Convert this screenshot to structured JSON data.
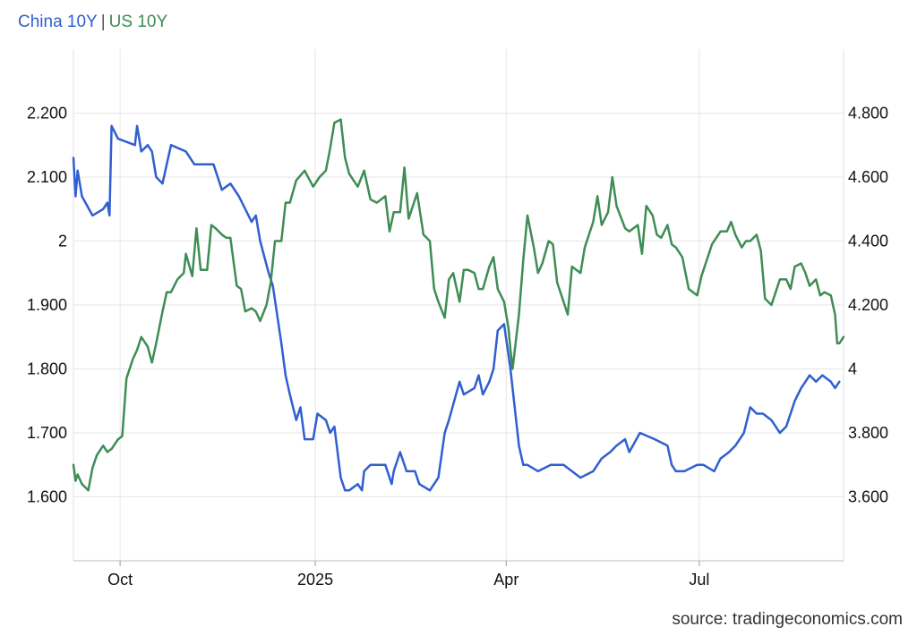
{
  "chart_data": {
    "type": "line",
    "source": "source: tradingeconomics.com",
    "legend": {
      "position": "top-left",
      "separator": "|"
    },
    "colors": {
      "China 10Y": "#2f5fd0",
      "US 10Y": "#3e8d55",
      "grid": "#e6e6e6"
    },
    "grid": true,
    "x_ticks": [
      {
        "date": "2024-10-01",
        "label": "Oct"
      },
      {
        "date": "2025-01-01",
        "label": "2025"
      },
      {
        "date": "2025-04-01",
        "label": "Apr"
      },
      {
        "date": "2025-07-01",
        "label": "Jul"
      }
    ],
    "x_range": [
      "2024-09-09",
      "2025-09-07"
    ],
    "y_left": {
      "series": "China 10Y",
      "range": [
        1.5,
        2.3
      ],
      "ticks": [
        1.6,
        1.7,
        1.8,
        1.9,
        2.0,
        2.1,
        2.2
      ],
      "tick_labels": [
        "1.600",
        "1.700",
        "1.800",
        "1.900",
        "2",
        "2.100",
        "2.200"
      ]
    },
    "y_right": {
      "series": "US 10Y",
      "range": [
        3.4,
        5.0
      ],
      "ticks": [
        3.6,
        3.8,
        4.0,
        4.2,
        4.4,
        4.6,
        4.8
      ],
      "tick_labels": [
        "3.600",
        "3.800",
        "4",
        "4.200",
        "4.400",
        "4.600",
        "4.800"
      ]
    },
    "series": [
      {
        "name": "China 10Y",
        "axis": "left",
        "points": [
          [
            "2024-09-09",
            2.13
          ],
          [
            "2024-09-10",
            2.07
          ],
          [
            "2024-09-11",
            2.11
          ],
          [
            "2024-09-13",
            2.07
          ],
          [
            "2024-09-18",
            2.04
          ],
          [
            "2024-09-23",
            2.05
          ],
          [
            "2024-09-25",
            2.06
          ],
          [
            "2024-09-26",
            2.04
          ],
          [
            "2024-09-27",
            2.18
          ],
          [
            "2024-09-30",
            2.16
          ],
          [
            "2024-10-08",
            2.15
          ],
          [
            "2024-10-09",
            2.18
          ],
          [
            "2024-10-11",
            2.14
          ],
          [
            "2024-10-14",
            2.15
          ],
          [
            "2024-10-16",
            2.14
          ],
          [
            "2024-10-18",
            2.1
          ],
          [
            "2024-10-21",
            2.09
          ],
          [
            "2024-10-23",
            2.12
          ],
          [
            "2024-10-25",
            2.15
          ],
          [
            "2024-11-01",
            2.14
          ],
          [
            "2024-11-05",
            2.12
          ],
          [
            "2024-11-14",
            2.12
          ],
          [
            "2024-11-18",
            2.08
          ],
          [
            "2024-11-22",
            2.09
          ],
          [
            "2024-11-26",
            2.07
          ],
          [
            "2024-12-02",
            2.03
          ],
          [
            "2024-12-04",
            2.04
          ],
          [
            "2024-12-06",
            2.0
          ],
          [
            "2024-12-10",
            1.95
          ],
          [
            "2024-12-12",
            1.93
          ],
          [
            "2024-12-16",
            1.84
          ],
          [
            "2024-12-18",
            1.79
          ],
          [
            "2024-12-20",
            1.76
          ],
          [
            "2024-12-23",
            1.72
          ],
          [
            "2024-12-25",
            1.74
          ],
          [
            "2024-12-27",
            1.69
          ],
          [
            "2024-12-31",
            1.69
          ],
          [
            "2025-01-02",
            1.73
          ],
          [
            "2025-01-06",
            1.72
          ],
          [
            "2025-01-08",
            1.7
          ],
          [
            "2025-01-10",
            1.71
          ],
          [
            "2025-01-13",
            1.63
          ],
          [
            "2025-01-15",
            1.61
          ],
          [
            "2025-01-17",
            1.61
          ],
          [
            "2025-01-21",
            1.62
          ],
          [
            "2025-01-23",
            1.61
          ],
          [
            "2025-01-24",
            1.64
          ],
          [
            "2025-01-27",
            1.65
          ],
          [
            "2025-02-03",
            1.65
          ],
          [
            "2025-02-06",
            1.62
          ],
          [
            "2025-02-07",
            1.64
          ],
          [
            "2025-02-10",
            1.67
          ],
          [
            "2025-02-13",
            1.64
          ],
          [
            "2025-02-17",
            1.64
          ],
          [
            "2025-02-19",
            1.62
          ],
          [
            "2025-02-24",
            1.61
          ],
          [
            "2025-02-28",
            1.63
          ],
          [
            "2025-03-03",
            1.7
          ],
          [
            "2025-03-05",
            1.72
          ],
          [
            "2025-03-10",
            1.78
          ],
          [
            "2025-03-12",
            1.76
          ],
          [
            "2025-03-17",
            1.77
          ],
          [
            "2025-03-19",
            1.79
          ],
          [
            "2025-03-21",
            1.76
          ],
          [
            "2025-03-24",
            1.78
          ],
          [
            "2025-03-26",
            1.8
          ],
          [
            "2025-03-28",
            1.86
          ],
          [
            "2025-03-31",
            1.87
          ],
          [
            "2025-04-03",
            1.8
          ],
          [
            "2025-04-07",
            1.68
          ],
          [
            "2025-04-09",
            1.65
          ],
          [
            "2025-04-11",
            1.65
          ],
          [
            "2025-04-16",
            1.64
          ],
          [
            "2025-04-22",
            1.65
          ],
          [
            "2025-04-28",
            1.65
          ],
          [
            "2025-05-06",
            1.63
          ],
          [
            "2025-05-12",
            1.64
          ],
          [
            "2025-05-16",
            1.66
          ],
          [
            "2025-05-20",
            1.67
          ],
          [
            "2025-05-23",
            1.68
          ],
          [
            "2025-05-27",
            1.69
          ],
          [
            "2025-05-29",
            1.67
          ],
          [
            "2025-06-03",
            1.7
          ],
          [
            "2025-06-10",
            1.69
          ],
          [
            "2025-06-16",
            1.68
          ],
          [
            "2025-06-18",
            1.65
          ],
          [
            "2025-06-20",
            1.64
          ],
          [
            "2025-06-24",
            1.64
          ],
          [
            "2025-06-30",
            1.65
          ],
          [
            "2025-07-03",
            1.65
          ],
          [
            "2025-07-08",
            1.64
          ],
          [
            "2025-07-11",
            1.66
          ],
          [
            "2025-07-15",
            1.67
          ],
          [
            "2025-07-18",
            1.68
          ],
          [
            "2025-07-22",
            1.7
          ],
          [
            "2025-07-25",
            1.74
          ],
          [
            "2025-07-28",
            1.73
          ],
          [
            "2025-07-31",
            1.73
          ],
          [
            "2025-08-04",
            1.72
          ],
          [
            "2025-08-06",
            1.71
          ],
          [
            "2025-08-08",
            1.7
          ],
          [
            "2025-08-11",
            1.71
          ],
          [
            "2025-08-13",
            1.73
          ],
          [
            "2025-08-15",
            1.75
          ],
          [
            "2025-08-18",
            1.77
          ],
          [
            "2025-08-20",
            1.78
          ],
          [
            "2025-08-22",
            1.79
          ],
          [
            "2025-08-25",
            1.78
          ],
          [
            "2025-08-28",
            1.79
          ],
          [
            "2025-09-01",
            1.78
          ],
          [
            "2025-09-03",
            1.77
          ],
          [
            "2025-09-05",
            1.78
          ]
        ]
      },
      {
        "name": "US 10Y",
        "axis": "right",
        "points": [
          [
            "2024-09-09",
            3.7
          ],
          [
            "2024-09-10",
            3.65
          ],
          [
            "2024-09-11",
            3.67
          ],
          [
            "2024-09-13",
            3.64
          ],
          [
            "2024-09-16",
            3.62
          ],
          [
            "2024-09-18",
            3.69
          ],
          [
            "2024-09-20",
            3.73
          ],
          [
            "2024-09-23",
            3.76
          ],
          [
            "2024-09-25",
            3.74
          ],
          [
            "2024-09-27",
            3.75
          ],
          [
            "2024-09-30",
            3.78
          ],
          [
            "2024-10-02",
            3.79
          ],
          [
            "2024-10-04",
            3.97
          ],
          [
            "2024-10-07",
            4.03
          ],
          [
            "2024-10-09",
            4.06
          ],
          [
            "2024-10-11",
            4.1
          ],
          [
            "2024-10-14",
            4.07
          ],
          [
            "2024-10-16",
            4.02
          ],
          [
            "2024-10-18",
            4.08
          ],
          [
            "2024-10-21",
            4.18
          ],
          [
            "2024-10-23",
            4.24
          ],
          [
            "2024-10-25",
            4.24
          ],
          [
            "2024-10-28",
            4.28
          ],
          [
            "2024-10-31",
            4.3
          ],
          [
            "2024-11-01",
            4.36
          ],
          [
            "2024-11-04",
            4.29
          ],
          [
            "2024-11-06",
            4.44
          ],
          [
            "2024-11-08",
            4.31
          ],
          [
            "2024-11-11",
            4.31
          ],
          [
            "2024-11-13",
            4.45
          ],
          [
            "2024-11-15",
            4.44
          ],
          [
            "2024-11-18",
            4.42
          ],
          [
            "2024-11-20",
            4.41
          ],
          [
            "2024-11-22",
            4.41
          ],
          [
            "2024-11-25",
            4.26
          ],
          [
            "2024-11-27",
            4.25
          ],
          [
            "2024-11-29",
            4.18
          ],
          [
            "2024-12-02",
            4.19
          ],
          [
            "2024-12-04",
            4.18
          ],
          [
            "2024-12-06",
            4.15
          ],
          [
            "2024-12-09",
            4.2
          ],
          [
            "2024-12-11",
            4.27
          ],
          [
            "2024-12-13",
            4.4
          ],
          [
            "2024-12-16",
            4.4
          ],
          [
            "2024-12-18",
            4.52
          ],
          [
            "2024-12-20",
            4.52
          ],
          [
            "2024-12-23",
            4.59
          ],
          [
            "2024-12-27",
            4.62
          ],
          [
            "2024-12-31",
            4.57
          ],
          [
            "2025-01-03",
            4.6
          ],
          [
            "2025-01-06",
            4.62
          ],
          [
            "2025-01-08",
            4.69
          ],
          [
            "2025-01-10",
            4.77
          ],
          [
            "2025-01-13",
            4.78
          ],
          [
            "2025-01-15",
            4.66
          ],
          [
            "2025-01-17",
            4.61
          ],
          [
            "2025-01-21",
            4.57
          ],
          [
            "2025-01-24",
            4.62
          ],
          [
            "2025-01-27",
            4.53
          ],
          [
            "2025-01-30",
            4.52
          ],
          [
            "2025-02-03",
            4.54
          ],
          [
            "2025-02-05",
            4.43
          ],
          [
            "2025-02-07",
            4.49
          ],
          [
            "2025-02-10",
            4.49
          ],
          [
            "2025-02-12",
            4.63
          ],
          [
            "2025-02-14",
            4.47
          ],
          [
            "2025-02-18",
            4.55
          ],
          [
            "2025-02-21",
            4.42
          ],
          [
            "2025-02-24",
            4.4
          ],
          [
            "2025-02-26",
            4.25
          ],
          [
            "2025-02-28",
            4.21
          ],
          [
            "2025-03-03",
            4.16
          ],
          [
            "2025-03-05",
            4.28
          ],
          [
            "2025-03-07",
            4.3
          ],
          [
            "2025-03-10",
            4.21
          ],
          [
            "2025-03-12",
            4.31
          ],
          [
            "2025-03-14",
            4.31
          ],
          [
            "2025-03-17",
            4.3
          ],
          [
            "2025-03-19",
            4.25
          ],
          [
            "2025-03-21",
            4.25
          ],
          [
            "2025-03-24",
            4.32
          ],
          [
            "2025-03-26",
            4.35
          ],
          [
            "2025-03-28",
            4.25
          ],
          [
            "2025-03-31",
            4.21
          ],
          [
            "2025-04-02",
            4.13
          ],
          [
            "2025-04-03",
            4.06
          ],
          [
            "2025-04-04",
            4.0
          ],
          [
            "2025-04-07",
            4.17
          ],
          [
            "2025-04-09",
            4.34
          ],
          [
            "2025-04-11",
            4.48
          ],
          [
            "2025-04-14",
            4.38
          ],
          [
            "2025-04-16",
            4.3
          ],
          [
            "2025-04-18",
            4.33
          ],
          [
            "2025-04-21",
            4.4
          ],
          [
            "2025-04-23",
            4.39
          ],
          [
            "2025-04-25",
            4.27
          ],
          [
            "2025-04-28",
            4.21
          ],
          [
            "2025-04-30",
            4.17
          ],
          [
            "2025-05-02",
            4.32
          ],
          [
            "2025-05-06",
            4.3
          ],
          [
            "2025-05-08",
            4.38
          ],
          [
            "2025-05-12",
            4.46
          ],
          [
            "2025-05-14",
            4.54
          ],
          [
            "2025-05-16",
            4.45
          ],
          [
            "2025-05-19",
            4.49
          ],
          [
            "2025-05-21",
            4.6
          ],
          [
            "2025-05-23",
            4.51
          ],
          [
            "2025-05-27",
            4.44
          ],
          [
            "2025-05-29",
            4.43
          ],
          [
            "2025-06-02",
            4.45
          ],
          [
            "2025-06-04",
            4.36
          ],
          [
            "2025-06-06",
            4.51
          ],
          [
            "2025-06-09",
            4.48
          ],
          [
            "2025-06-11",
            4.42
          ],
          [
            "2025-06-13",
            4.41
          ],
          [
            "2025-06-16",
            4.45
          ],
          [
            "2025-06-18",
            4.39
          ],
          [
            "2025-06-20",
            4.38
          ],
          [
            "2025-06-23",
            4.35
          ],
          [
            "2025-06-26",
            4.25
          ],
          [
            "2025-06-30",
            4.23
          ],
          [
            "2025-07-02",
            4.29
          ],
          [
            "2025-07-07",
            4.39
          ],
          [
            "2025-07-11",
            4.43
          ],
          [
            "2025-07-14",
            4.43
          ],
          [
            "2025-07-16",
            4.46
          ],
          [
            "2025-07-18",
            4.42
          ],
          [
            "2025-07-21",
            4.38
          ],
          [
            "2025-07-23",
            4.4
          ],
          [
            "2025-07-25",
            4.4
          ],
          [
            "2025-07-28",
            4.42
          ],
          [
            "2025-07-30",
            4.37
          ],
          [
            "2025-08-01",
            4.22
          ],
          [
            "2025-08-04",
            4.2
          ],
          [
            "2025-08-06",
            4.24
          ],
          [
            "2025-08-08",
            4.28
          ],
          [
            "2025-08-11",
            4.28
          ],
          [
            "2025-08-13",
            4.25
          ],
          [
            "2025-08-15",
            4.32
          ],
          [
            "2025-08-18",
            4.33
          ],
          [
            "2025-08-20",
            4.3
          ],
          [
            "2025-08-22",
            4.26
          ],
          [
            "2025-08-25",
            4.28
          ],
          [
            "2025-08-27",
            4.23
          ],
          [
            "2025-08-29",
            4.24
          ],
          [
            "2025-09-01",
            4.23
          ],
          [
            "2025-09-03",
            4.17
          ],
          [
            "2025-09-04",
            4.08
          ],
          [
            "2025-09-05",
            4.08
          ],
          [
            "2025-09-07",
            4.1
          ]
        ]
      }
    ]
  }
}
